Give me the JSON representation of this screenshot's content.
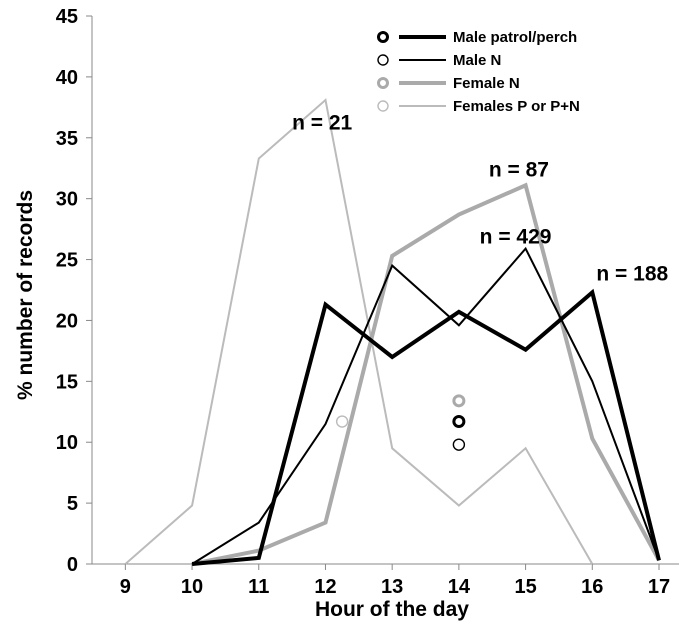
{
  "chart_data": {
    "type": "line",
    "title": "",
    "xlabel": "Hour of the day",
    "ylabel": "% number of records",
    "x": [
      9,
      10,
      11,
      12,
      13,
      14,
      15,
      16,
      17
    ],
    "xlim": [
      8.5,
      17.3
    ],
    "ylim": [
      0,
      45
    ],
    "yticks": [
      0,
      5,
      10,
      15,
      20,
      25,
      30,
      35,
      40,
      45
    ],
    "grid": false,
    "legend_position": "top-right",
    "series": [
      {
        "name": "Male patrol/perch",
        "color": "#000000",
        "weight": "thick",
        "x": [
          10,
          11,
          12,
          13,
          14,
          15,
          16,
          17
        ],
        "values": [
          0,
          0.5,
          21.3,
          17.0,
          20.7,
          17.6,
          22.3,
          0.3
        ],
        "marker_value": 11.7
      },
      {
        "name": "Male N",
        "color": "#000000",
        "weight": "thin",
        "x": [
          10,
          11,
          12,
          13,
          14,
          15,
          16,
          17
        ],
        "values": [
          0,
          3.4,
          11.5,
          24.5,
          19.6,
          25.9,
          15.0,
          0.3
        ],
        "marker_value": 9.8
      },
      {
        "name": "Female N",
        "color": "#aaaaaa",
        "weight": "thick",
        "x": [
          10,
          11,
          12,
          13,
          14,
          15,
          16,
          17
        ],
        "values": [
          0,
          1.1,
          3.4,
          25.3,
          28.7,
          31.1,
          10.3,
          0.3
        ],
        "marker_value": 13.4
      },
      {
        "name": "Females P or P+N",
        "color": "#bbbbbb",
        "weight": "thin",
        "x": [
          9,
          10,
          11,
          12,
          13,
          14,
          15,
          16
        ],
        "values": [
          0,
          4.8,
          33.3,
          38.1,
          9.5,
          4.8,
          9.5,
          0
        ],
        "marker_value": 11.7
      }
    ],
    "markers": [
      {
        "series": 0,
        "x": 14,
        "y": 11.7
      },
      {
        "series": 1,
        "x": 14,
        "y": 9.8
      },
      {
        "series": 2,
        "x": 14,
        "y": 13.4
      },
      {
        "series": 3,
        "x": 12.25,
        "y": 11.7
      }
    ],
    "annotations": [
      {
        "text": "n = 21",
        "x": 11.95,
        "y": 35.7
      },
      {
        "text": "n = 87",
        "x": 14.9,
        "y": 31.8
      },
      {
        "text": "n = 429",
        "x": 14.85,
        "y": 26.3
      },
      {
        "text": "n = 188",
        "x": 16.6,
        "y": 23.3
      }
    ]
  }
}
